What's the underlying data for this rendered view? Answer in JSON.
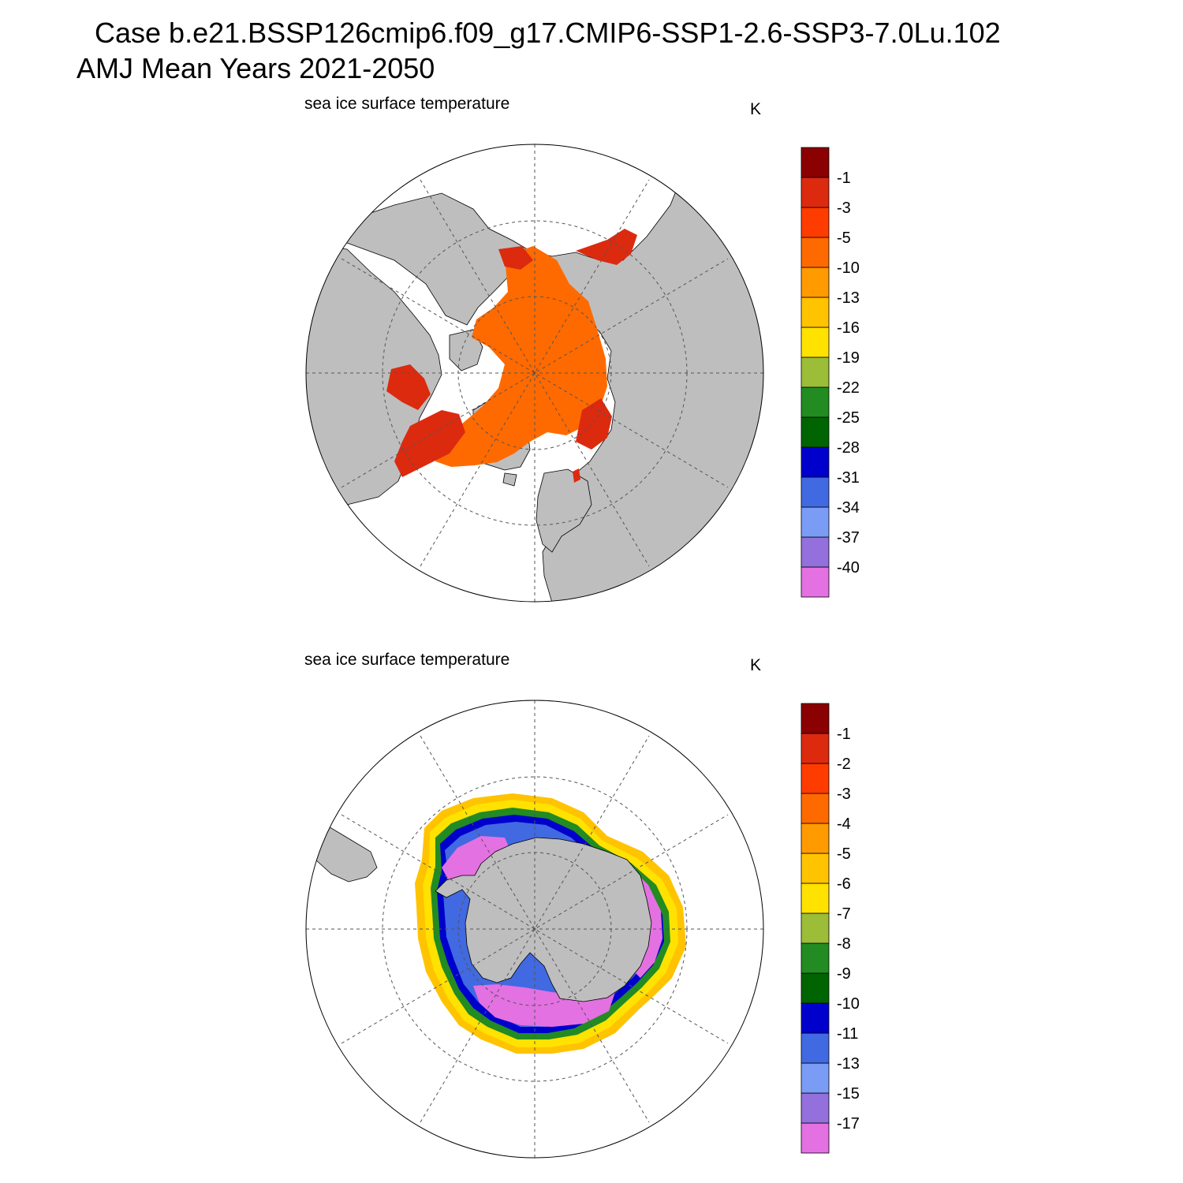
{
  "header": {
    "case_line": "Case b.e21.BSSP126cmip6.f09_g17.CMIP6-SSP1-2.6-SSP3-7.0Lu.102",
    "period_line": "AMJ Mean   Years 2021-2050"
  },
  "colors": {
    "land": "#bebebe",
    "ocean": "#ffffff",
    "palette": [
      "#e371e1",
      "#9370db",
      "#7b9cf5",
      "#4169e1",
      "#0000cd",
      "#006400",
      "#228b22",
      "#9bbd38",
      "#ffe200",
      "#ffc300",
      "#ff9b00",
      "#ff6a00",
      "#ff3c00",
      "#dc2a0f",
      "#8b0000"
    ]
  },
  "panels": [
    {
      "id": "north",
      "variable_label": "sea ice surface temperature",
      "units": "K",
      "colorbar_labels": [
        "-40",
        "-37",
        "-34",
        "-31",
        "-28",
        "-25",
        "-22",
        "-19",
        "-16",
        "-13",
        "-10",
        "-5",
        "-3",
        "-1"
      ]
    },
    {
      "id": "south",
      "variable_label": "sea ice surface temperature",
      "units": "K",
      "colorbar_labels": [
        "-17",
        "-15",
        "-13",
        "-11",
        "-10",
        "-9",
        "-8",
        "-7",
        "-6",
        "-5",
        "-4",
        "-3",
        "-2",
        "-1"
      ]
    }
  ]
}
